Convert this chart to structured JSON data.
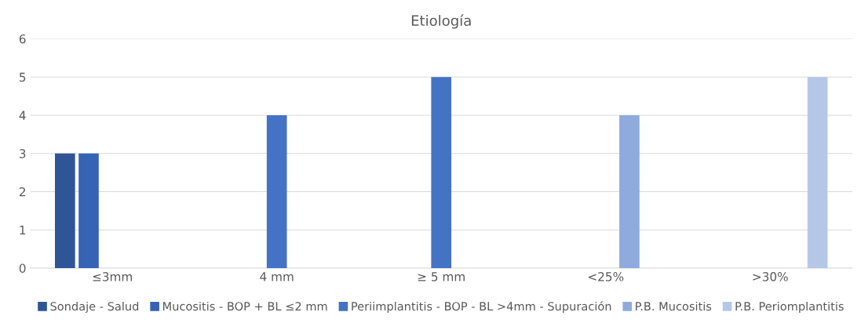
{
  "chart_data": {
    "type": "bar",
    "title": "Etiología",
    "categories": [
      "≤3mm",
      "4 mm",
      "≥ 5 mm",
      "<25%",
      ">30%"
    ],
    "series": [
      {
        "name": "Sondaje - Salud",
        "color": "#2f5597",
        "values": [
          3,
          null,
          null,
          null,
          null
        ]
      },
      {
        "name": "Mucositis - BOP + BL ≤2 mm",
        "color": "#3763b5",
        "values": [
          3,
          null,
          null,
          null,
          null
        ]
      },
      {
        "name": "Periimplantitis - BOP - BL >4mm - Supuración",
        "color": "#4472c4",
        "values": [
          null,
          4,
          5,
          null,
          null
        ]
      },
      {
        "name": "P.B. Mucositis",
        "color": "#8faadc",
        "values": [
          null,
          null,
          null,
          4,
          null
        ]
      },
      {
        "name": "P.B. Periomplantitis",
        "color": "#b4c7e7",
        "values": [
          null,
          null,
          null,
          null,
          5
        ]
      }
    ],
    "ylim": [
      0,
      6
    ],
    "yticks": [
      0,
      1,
      2,
      3,
      4,
      5,
      6
    ],
    "grid": "y",
    "legend": "bottom"
  }
}
